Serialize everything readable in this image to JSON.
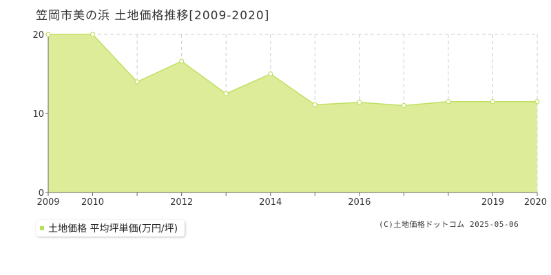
{
  "header": {
    "title": "笠岡市美の浜 土地価格推移[2009-2020]"
  },
  "legend": {
    "label": "土地価格 平均坪単価(万円/坪)",
    "color": "#b6e05a"
  },
  "footer": {
    "copyright": "(C)土地価格ドットコム 2025-05-06"
  },
  "chart_data": {
    "type": "area",
    "title": "笠岡市美の浜 土地価格推移[2009-2020]",
    "xlabel": "",
    "ylabel": "",
    "x": [
      2009,
      2010,
      2011,
      2012,
      2013,
      2014,
      2015,
      2016,
      2017,
      2018,
      2019,
      2020
    ],
    "series": [
      {
        "name": "土地価格 平均坪単価(万円/坪)",
        "values": [
          20.0,
          20.0,
          14.0,
          16.6,
          12.5,
          15.0,
          11.1,
          11.4,
          11.0,
          11.5,
          11.5,
          11.5
        ]
      }
    ],
    "xlim": [
      2009,
      2020
    ],
    "ylim": [
      0,
      20
    ],
    "yticks": [
      "0",
      "10",
      "20"
    ],
    "xtick_labels": [
      "2009",
      "2010",
      "2012",
      "2014",
      "2016",
      "2019",
      "2020"
    ],
    "grid": true,
    "legend_position": "bottom-left",
    "colors": {
      "fill": "#dcec98",
      "line": "#c0e060",
      "grid": "#cccccc",
      "axis": "#666666"
    }
  }
}
